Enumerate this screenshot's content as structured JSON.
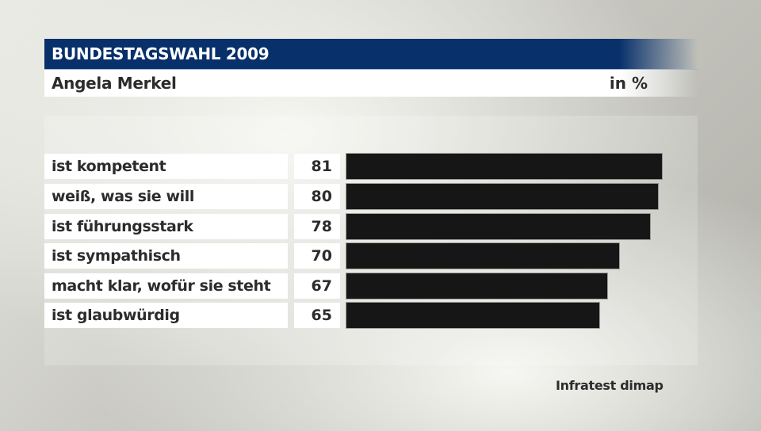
{
  "header": {
    "title": "BUNDESTAGSWAHL 2009",
    "subtitle": "Angela Merkel",
    "unit": "in %"
  },
  "colors": {
    "header_bg": "#08306b",
    "bar": "#161616",
    "text": "#2c2c2c"
  },
  "rows": [
    {
      "label": "ist kompetent",
      "value": "81"
    },
    {
      "label": "weiß, was sie will",
      "value": "80"
    },
    {
      "label": "ist führungsstark",
      "value": "78"
    },
    {
      "label": "ist sympathisch",
      "value": "70"
    },
    {
      "label": "macht klar, wofür sie steht",
      "value": "67"
    },
    {
      "label": "ist glaubwürdig",
      "value": "65"
    }
  ],
  "source": "Infratest dimap",
  "chart_data": {
    "type": "bar",
    "orientation": "horizontal",
    "title": "BUNDESTAGSWAHL 2009",
    "subtitle": "Angela Merkel",
    "unit": "in %",
    "categories": [
      "ist kompetent",
      "weiß, was sie will",
      "ist führungsstark",
      "ist sympathisch",
      "macht klar, wofür sie steht",
      "ist glaubwürdig"
    ],
    "values": [
      81,
      80,
      78,
      70,
      67,
      65
    ],
    "xlabel": "",
    "ylabel": "",
    "xlim": [
      0,
      100
    ],
    "grid": false,
    "legend": null,
    "source": "Infratest dimap"
  }
}
